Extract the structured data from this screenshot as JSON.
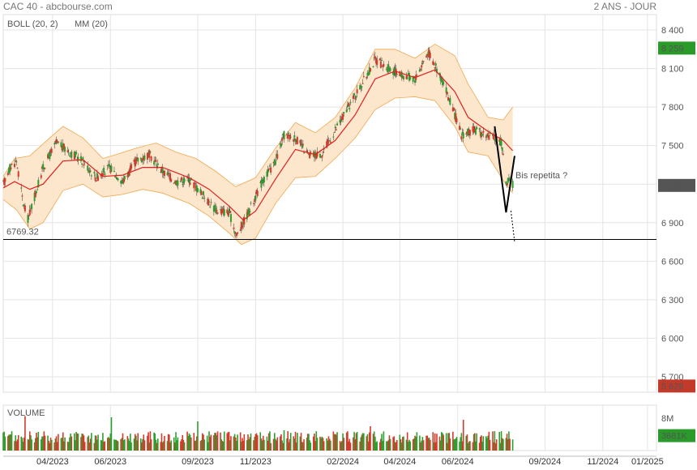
{
  "header": {
    "title": "CAC 40 - abcbourse.com",
    "period": "2 ANS - JOUR"
  },
  "legend": {
    "boll": "BOLL (20, 2)",
    "mm": "MM (20)"
  },
  "colors": {
    "up": "#2e9e2e",
    "down": "#d43b2a",
    "band_fill": "#fce3c6",
    "band_line": "#f0a850",
    "mm": "#e02020",
    "grid": "#e4e4e4",
    "last_high": "#2a9a2a",
    "last_price": "#555555",
    "last_low": "#c43a2a"
  },
  "chart_data": {
    "type": "candlestick",
    "title": "CAC 40",
    "yticks": [
      8400,
      8100,
      7800,
      7500,
      7200,
      6900,
      6600,
      6300,
      6000,
      5700
    ],
    "ylim": [
      5580,
      8520
    ],
    "xticks": [
      "04/2023",
      "06/2023",
      "09/2023",
      "11/2023",
      "02/2024",
      "04/2024",
      "06/2024",
      "09/2024",
      "11/2024",
      "01/2025"
    ],
    "price_path": [
      [
        "2023-02-22",
        7200
      ],
      [
        "2023-03-01",
        7330
      ],
      [
        "2023-03-08",
        7380
      ],
      [
        "2023-03-15",
        7050
      ],
      [
        "2023-03-20",
        6930
      ],
      [
        "2023-03-27",
        7100
      ],
      [
        "2023-04-05",
        7330
      ],
      [
        "2023-04-19",
        7520
      ],
      [
        "2023-05-03",
        7450
      ],
      [
        "2023-05-17",
        7380
      ],
      [
        "2023-05-31",
        7250
      ],
      [
        "2023-06-14",
        7330
      ],
      [
        "2023-06-28",
        7220
      ],
      [
        "2023-07-12",
        7380
      ],
      [
        "2023-07-26",
        7430
      ],
      [
        "2023-08-09",
        7300
      ],
      [
        "2023-08-23",
        7220
      ],
      [
        "2023-09-06",
        7240
      ],
      [
        "2023-09-20",
        7120
      ],
      [
        "2023-10-04",
        7000
      ],
      [
        "2023-10-18",
        6980
      ],
      [
        "2023-10-26",
        6800
      ],
      [
        "2023-11-08",
        6990
      ],
      [
        "2023-11-22",
        7220
      ],
      [
        "2023-12-06",
        7380
      ],
      [
        "2023-12-15",
        7580
      ],
      [
        "2023-12-27",
        7560
      ],
      [
        "2024-01-10",
        7420
      ],
      [
        "2024-01-24",
        7440
      ],
      [
        "2024-02-07",
        7620
      ],
      [
        "2024-02-21",
        7800
      ],
      [
        "2024-03-06",
        7980
      ],
      [
        "2024-03-20",
        8170
      ],
      [
        "2024-04-03",
        8100
      ],
      [
        "2024-04-17",
        8050
      ],
      [
        "2024-05-01",
        8020
      ],
      [
        "2024-05-15",
        8230
      ],
      [
        "2024-05-29",
        8020
      ],
      [
        "2024-06-12",
        7740
      ],
      [
        "2024-06-19",
        7580
      ],
      [
        "2024-07-03",
        7620
      ],
      [
        "2024-07-17",
        7580
      ],
      [
        "2024-07-31",
        7530
      ],
      [
        "2024-08-05",
        7230
      ],
      [
        "2024-08-12",
        7200
      ]
    ],
    "bollinger": {
      "upper": [
        [
          "2023-02-22",
          7260
        ],
        [
          "2023-03-06",
          7400
        ],
        [
          "2023-03-22",
          7420
        ],
        [
          "2023-04-12",
          7560
        ],
        [
          "2023-04-26",
          7650
        ],
        [
          "2023-05-17",
          7560
        ],
        [
          "2023-06-07",
          7400
        ],
        [
          "2023-06-21",
          7430
        ],
        [
          "2023-07-12",
          7480
        ],
        [
          "2023-08-02",
          7520
        ],
        [
          "2023-08-23",
          7450
        ],
        [
          "2023-09-13",
          7400
        ],
        [
          "2023-10-04",
          7300
        ],
        [
          "2023-10-25",
          7180
        ],
        [
          "2023-11-15",
          7250
        ],
        [
          "2023-12-06",
          7480
        ],
        [
          "2023-12-27",
          7680
        ],
        [
          "2024-01-17",
          7600
        ],
        [
          "2024-02-07",
          7720
        ],
        [
          "2024-02-28",
          7950
        ],
        [
          "2024-03-20",
          8250
        ],
        [
          "2024-04-10",
          8250
        ],
        [
          "2024-05-01",
          8180
        ],
        [
          "2024-05-22",
          8290
        ],
        [
          "2024-06-12",
          8200
        ],
        [
          "2024-06-26",
          7980
        ],
        [
          "2024-07-17",
          7720
        ],
        [
          "2024-08-02",
          7700
        ],
        [
          "2024-08-12",
          7800
        ]
      ],
      "lower": [
        [
          "2023-02-22",
          7080
        ],
        [
          "2023-03-08",
          7000
        ],
        [
          "2023-03-22",
          6850
        ],
        [
          "2023-04-05",
          6900
        ],
        [
          "2023-04-26",
          7150
        ],
        [
          "2023-05-17",
          7200
        ],
        [
          "2023-06-07",
          7100
        ],
        [
          "2023-06-28",
          7120
        ],
        [
          "2023-07-19",
          7160
        ],
        [
          "2023-08-09",
          7130
        ],
        [
          "2023-09-06",
          7050
        ],
        [
          "2023-09-27",
          6950
        ],
        [
          "2023-10-18",
          6820
        ],
        [
          "2023-10-31",
          6730
        ],
        [
          "2023-11-15",
          6780
        ],
        [
          "2023-12-06",
          7050
        ],
        [
          "2023-12-27",
          7250
        ],
        [
          "2024-01-17",
          7260
        ],
        [
          "2024-02-07",
          7400
        ],
        [
          "2024-02-28",
          7560
        ],
        [
          "2024-03-20",
          7780
        ],
        [
          "2024-04-10",
          7870
        ],
        [
          "2024-05-01",
          7880
        ],
        [
          "2024-05-22",
          7850
        ],
        [
          "2024-06-12",
          7650
        ],
        [
          "2024-06-26",
          7450
        ],
        [
          "2024-07-17",
          7420
        ],
        [
          "2024-08-02",
          7230
        ],
        [
          "2024-08-12",
          7130
        ]
      ]
    },
    "mm20": [
      [
        "2023-02-22",
        7170
      ],
      [
        "2023-03-06",
        7220
      ],
      [
        "2023-03-22",
        7160
      ],
      [
        "2023-04-05",
        7200
      ],
      [
        "2023-04-26",
        7380
      ],
      [
        "2023-05-17",
        7390
      ],
      [
        "2023-06-07",
        7260
      ],
      [
        "2023-06-28",
        7270
      ],
      [
        "2023-07-19",
        7330
      ],
      [
        "2023-08-09",
        7330
      ],
      [
        "2023-09-06",
        7250
      ],
      [
        "2023-09-27",
        7160
      ],
      [
        "2023-10-18",
        7030
      ],
      [
        "2023-11-02",
        6920
      ],
      [
        "2023-11-15",
        6990
      ],
      [
        "2023-12-06",
        7240
      ],
      [
        "2023-12-27",
        7470
      ],
      [
        "2024-01-17",
        7430
      ],
      [
        "2024-02-07",
        7540
      ],
      [
        "2024-02-28",
        7740
      ],
      [
        "2024-03-20",
        8020
      ],
      [
        "2024-04-10",
        8080
      ],
      [
        "2024-05-01",
        8030
      ],
      [
        "2024-05-22",
        8090
      ],
      [
        "2024-06-12",
        7920
      ],
      [
        "2024-06-26",
        7720
      ],
      [
        "2024-07-17",
        7610
      ],
      [
        "2024-08-02",
        7540
      ],
      [
        "2024-08-12",
        7460
      ]
    ],
    "annotations": {
      "support_label": "6769.32",
      "support_level": 6769.32,
      "commentary": "Bis repetita ?",
      "drop_triangle": [
        [
          "2024-07-24",
          7650
        ],
        [
          "2024-08-05",
          6980
        ],
        [
          "2024-08-14",
          7420
        ]
      ],
      "projection_end": [
        "2024-08-14",
        6750
      ]
    },
    "last_values": {
      "high": "8 259",
      "price": "7 190",
      "low": "5 628"
    },
    "volume": {
      "label": "VOLUME",
      "max_label": "8M",
      "last_label": "3681K",
      "scale_max": 8000,
      "typical_k": 3300,
      "spikes": [
        [
          "2023-03-17",
          8500
        ],
        [
          "2023-06-16",
          8200
        ],
        [
          "2023-09-15",
          7200
        ],
        [
          "2023-12-15",
          5000
        ],
        [
          "2024-03-15",
          6000
        ],
        [
          "2024-06-21",
          7600
        ]
      ]
    }
  }
}
